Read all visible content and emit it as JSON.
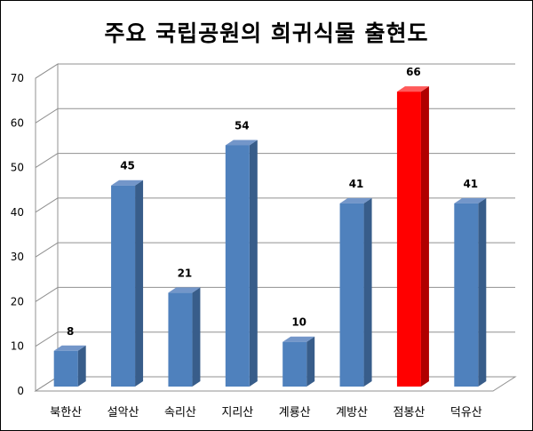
{
  "chart_data": {
    "type": "bar",
    "title": "주요 국립공원의 희귀식물 출현도",
    "categories": [
      "북한산",
      "설악산",
      "속리산",
      "지리산",
      "계룡산",
      "계방산",
      "점봉산",
      "덕유산"
    ],
    "values": [
      8,
      45,
      21,
      54,
      10,
      41,
      66,
      41
    ],
    "value_labels": [
      "8",
      "45",
      "21",
      "54",
      "10",
      "41",
      "66",
      "41"
    ],
    "yticks": [
      "0",
      "10",
      "20",
      "30",
      "40",
      "50",
      "60",
      "70"
    ],
    "ylim": [
      0,
      70
    ],
    "xlabel": "",
    "ylabel": "",
    "grid": true,
    "legend": "none",
    "style": "3d",
    "colors": {
      "bar": "#4F81BD",
      "bar_side": "#385D8A",
      "bar_top": "#7396C9",
      "highlight": "#FF0000",
      "highlight_side": "#B00000",
      "highlight_top": "#FF5A5A",
      "highlight_index": 6
    }
  }
}
